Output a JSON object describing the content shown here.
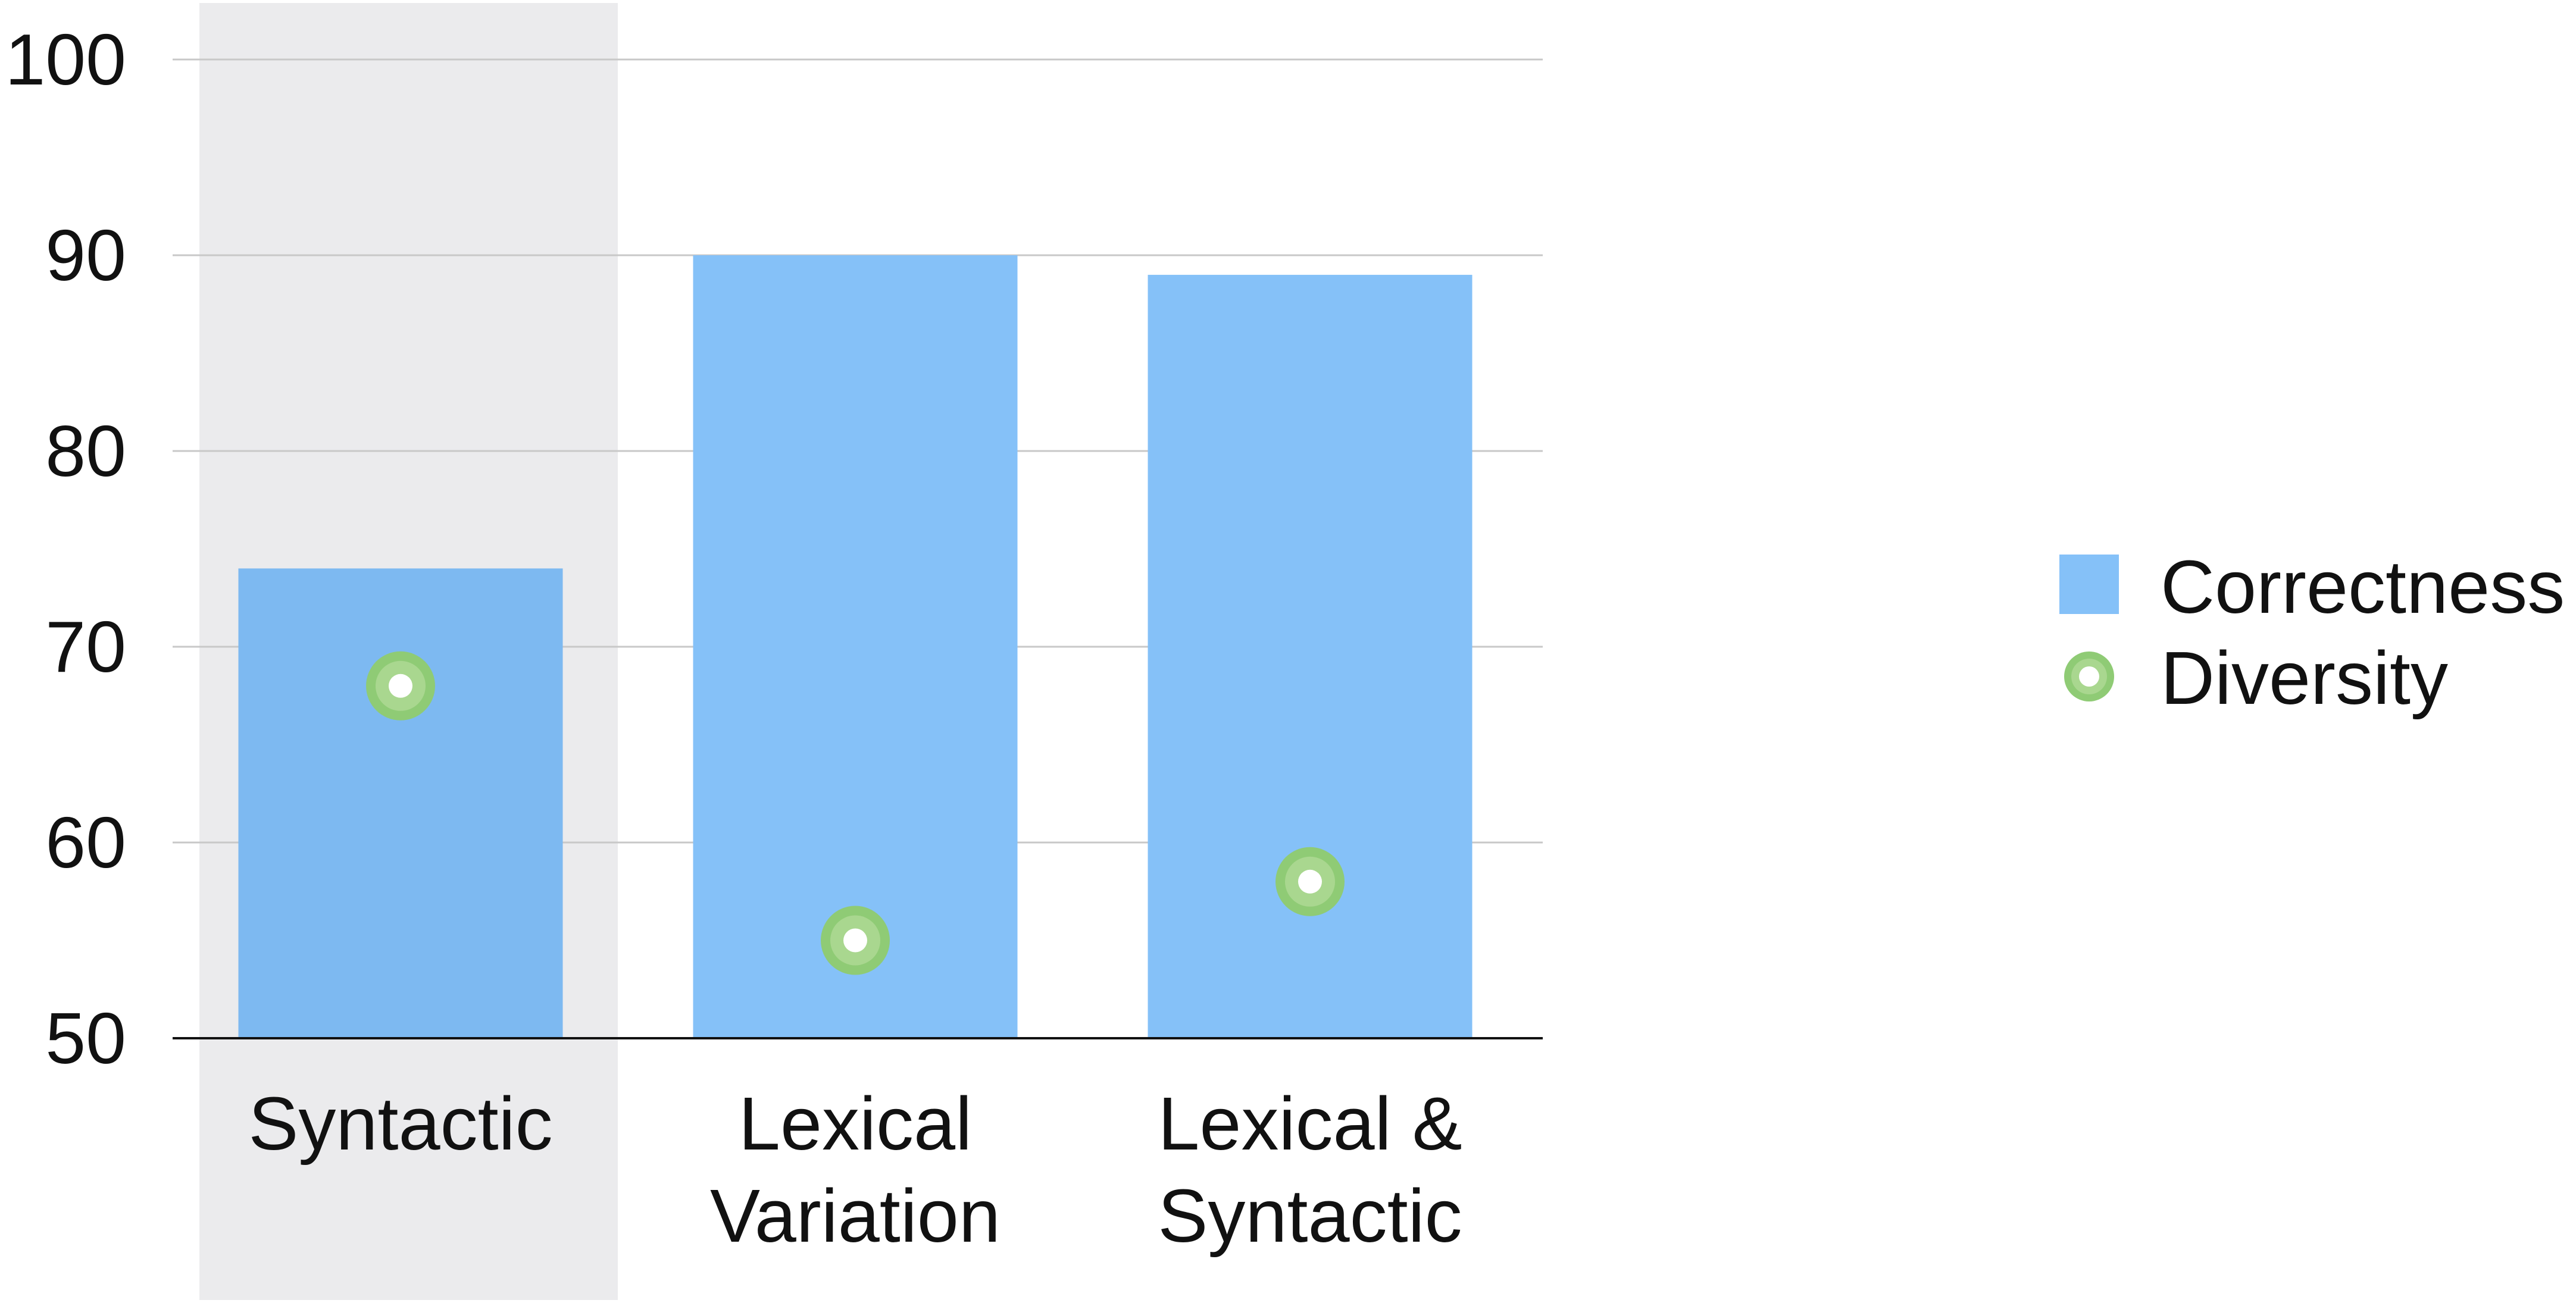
{
  "chart_data": {
    "type": "bar",
    "categories": [
      "Syntactic",
      "Lexical Variation",
      "Lexical & Syntactic"
    ],
    "category_label_lines": [
      [
        "Syntactic"
      ],
      [
        "Lexical",
        "Variation"
      ],
      [
        "Lexical &",
        "Syntactic"
      ]
    ],
    "highlighted_category": "Syntactic",
    "series": [
      {
        "name": "Correctness",
        "kind": "bar",
        "values": [
          74,
          90,
          89
        ],
        "color": "#85C1F8"
      },
      {
        "name": "Diversity",
        "kind": "point",
        "values": [
          68,
          55,
          58
        ],
        "color": "#8FCB75"
      }
    ],
    "ylim": [
      50,
      100
    ],
    "yticks": [
      "50",
      "60",
      "70",
      "80",
      "90",
      "100"
    ],
    "grid": true,
    "legend_position": "right",
    "colors": {
      "bar": "#85C1F8",
      "bar_on_highlight": "#7DB9F1",
      "highlight_band": "#EBEBED",
      "point_ring": "#8FCB75",
      "point_ring_inner": "#A9D78F",
      "point_center": "#FFFFFF",
      "grid": "#C8C8C8",
      "axis": "#111111"
    }
  }
}
